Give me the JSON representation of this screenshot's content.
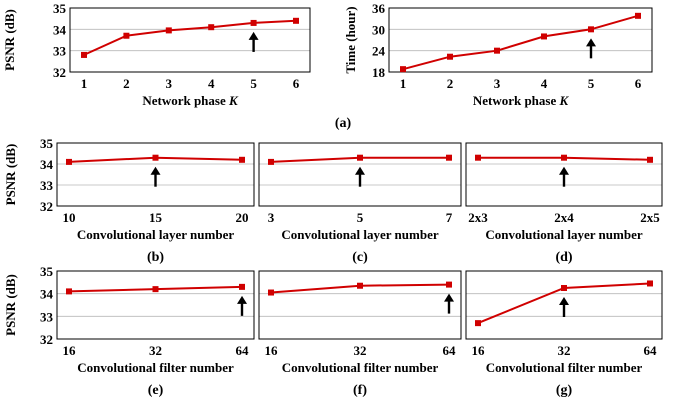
{
  "chart_data": [
    {
      "id": "a1",
      "panel_label": "",
      "type": "line",
      "x": [
        1,
        2,
        3,
        4,
        5,
        6
      ],
      "y": [
        32.8,
        33.7,
        33.95,
        34.1,
        34.3,
        34.4
      ],
      "xlabel": "Network phase ",
      "xlabel_italic": "K",
      "ylabel": "PSNR (dB)",
      "ylim": [
        32,
        35
      ],
      "yticks": [
        32,
        33,
        34,
        35
      ],
      "xticks": [
        "1",
        "2",
        "3",
        "4",
        "5",
        "6"
      ],
      "arrow_at": 4,
      "grid": true
    },
    {
      "id": "a2",
      "panel_label": "",
      "type": "line",
      "x": [
        1,
        2,
        3,
        4,
        5,
        6
      ],
      "y": [
        18.8,
        22.3,
        24.0,
        28.0,
        30.0,
        33.8
      ],
      "xlabel": "Network phase ",
      "xlabel_italic": "K",
      "ylabel": "Time (hour)",
      "ylim": [
        18,
        36
      ],
      "yticks": [
        18,
        24,
        30,
        36
      ],
      "xticks": [
        "1",
        "2",
        "3",
        "4",
        "5",
        "6"
      ],
      "arrow_at": 4,
      "grid": true
    },
    {
      "id": "b",
      "panel_label": "(b)",
      "type": "line",
      "x": [
        10,
        15,
        20
      ],
      "y": [
        34.1,
        34.3,
        34.2
      ],
      "xlabel": "Convolutional layer number",
      "ylabel": "PSNR (dB)",
      "ylim": [
        32,
        35
      ],
      "yticks": [
        32,
        33,
        34,
        35
      ],
      "xticks": [
        "10",
        "15",
        "20"
      ],
      "arrow_at": 1,
      "grid": true
    },
    {
      "id": "c",
      "panel_label": "(c)",
      "type": "line",
      "x": [
        3,
        5,
        7
      ],
      "y": [
        34.1,
        34.3,
        34.3
      ],
      "xlabel": "Convolutional layer number",
      "ylabel": "",
      "ylim": [
        32,
        35
      ],
      "yticks": [],
      "xticks": [
        "3",
        "5",
        "7"
      ],
      "arrow_at": 1,
      "grid": true
    },
    {
      "id": "d",
      "panel_label": "(d)",
      "type": "line",
      "x": [
        "2x3",
        "2x4",
        "2x5"
      ],
      "y": [
        34.3,
        34.3,
        34.2
      ],
      "xlabel": "Convolutional layer number",
      "ylabel": "",
      "ylim": [
        32,
        35
      ],
      "yticks": [],
      "xticks": [
        "2x3",
        "2x4",
        "2x5"
      ],
      "arrow_at": 1,
      "grid": true
    },
    {
      "id": "e",
      "panel_label": "(e)",
      "type": "line",
      "x": [
        16,
        32,
        64
      ],
      "y": [
        34.1,
        34.2,
        34.3
      ],
      "xlabel": "Convolutional filter number",
      "ylabel": "PSNR (dB)",
      "ylim": [
        32,
        35
      ],
      "yticks": [
        32,
        33,
        34,
        35
      ],
      "xticks": [
        "16",
        "32",
        "64"
      ],
      "arrow_at": 2,
      "grid": true
    },
    {
      "id": "f",
      "panel_label": "(f)",
      "type": "line",
      "x": [
        16,
        32,
        64
      ],
      "y": [
        34.05,
        34.35,
        34.4
      ],
      "xlabel": "Convolutional filter number",
      "ylabel": "",
      "ylim": [
        32,
        35
      ],
      "yticks": [],
      "xticks": [
        "16",
        "32",
        "64"
      ],
      "arrow_at": 2,
      "grid": true
    },
    {
      "id": "g",
      "panel_label": "(g)",
      "type": "line",
      "x": [
        16,
        32,
        64
      ],
      "y": [
        32.7,
        34.25,
        34.45
      ],
      "xlabel": "Convolutional filter number",
      "ylabel": "",
      "ylim": [
        32,
        35
      ],
      "yticks": [],
      "xticks": [
        "16",
        "32",
        "64"
      ],
      "arrow_at": 1,
      "grid": true
    }
  ],
  "row_labels": {
    "a": "(a)"
  }
}
